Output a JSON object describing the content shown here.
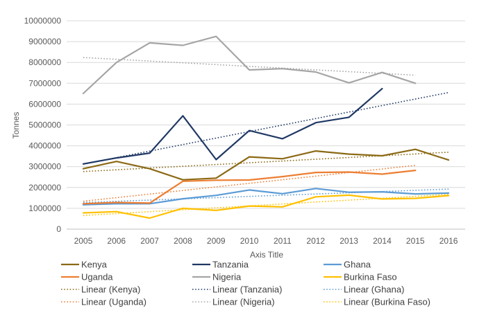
{
  "chart_data": {
    "type": "line",
    "x": [
      2005,
      2006,
      2007,
      2008,
      2009,
      2010,
      2011,
      2012,
      2013,
      2014,
      2015,
      2016
    ],
    "xlabel": "Axis Title",
    "ylabel": "Tonnes",
    "ylim": [
      0,
      10000000
    ],
    "yticks": [
      0,
      1000000,
      2000000,
      3000000,
      4000000,
      5000000,
      6000000,
      7000000,
      8000000,
      9000000,
      10000000
    ],
    "grid": true,
    "legend_position": "bottom",
    "series": [
      {
        "name": "Kenya",
        "color": "#8B6914",
        "style": "solid",
        "values": [
          2900000,
          3250000,
          2900000,
          2370000,
          2450000,
          3470000,
          3380000,
          3750000,
          3600000,
          3520000,
          3830000,
          3320000
        ]
      },
      {
        "name": "Tanzania",
        "color": "#1F3864",
        "style": "solid",
        "values": [
          3130000,
          3420000,
          3650000,
          5440000,
          3340000,
          4730000,
          4340000,
          5110000,
          5370000,
          6740000,
          null,
          null
        ]
      },
      {
        "name": "Ghana",
        "color": "#5B9BD5",
        "style": "solid",
        "values": [
          1170000,
          1220000,
          1220000,
          1460000,
          1620000,
          1880000,
          1700000,
          1950000,
          1770000,
          1790000,
          1690000,
          1730000
        ]
      },
      {
        "name": "Uganda",
        "color": "#ED7D31",
        "style": "solid",
        "values": [
          1220000,
          1280000,
          1250000,
          2300000,
          2350000,
          2360000,
          2520000,
          2720000,
          2740000,
          2640000,
          2820000,
          null
        ]
      },
      {
        "name": "Nigeria",
        "color": "#A5A5A5",
        "style": "solid",
        "values": [
          6510000,
          8000000,
          8940000,
          8820000,
          9250000,
          7640000,
          7700000,
          7540000,
          7020000,
          7520000,
          7000000,
          null
        ]
      },
      {
        "name": "Burkina Faso",
        "color": "#FFC000",
        "style": "solid",
        "values": [
          780000,
          840000,
          530000,
          1000000,
          900000,
          1110000,
          1070000,
          1550000,
          1630000,
          1450000,
          1480000,
          1610000
        ]
      },
      {
        "name": "Linear (Kenya)",
        "color": "#8B6914",
        "style": "dotted",
        "trend_of": "Kenya"
      },
      {
        "name": "Linear (Tanzania)",
        "color": "#1F3864",
        "style": "dotted",
        "trend_of": "Tanzania",
        "trend_end": 2016
      },
      {
        "name": "Linear (Ghana)",
        "color": "#5B9BD5",
        "style": "dotted",
        "trend_of": "Ghana"
      },
      {
        "name": "Linear (Uganda)",
        "color": "#ED7D31",
        "style": "dotted",
        "trend_of": "Uganda"
      },
      {
        "name": "Linear (Nigeria)",
        "color": "#A5A5A5",
        "style": "dotted",
        "trend_of": "Nigeria"
      },
      {
        "name": "Linear (Burkina Faso)",
        "color": "#FFC000",
        "style": "dotted",
        "trend_of": "Burkina Faso"
      }
    ]
  }
}
